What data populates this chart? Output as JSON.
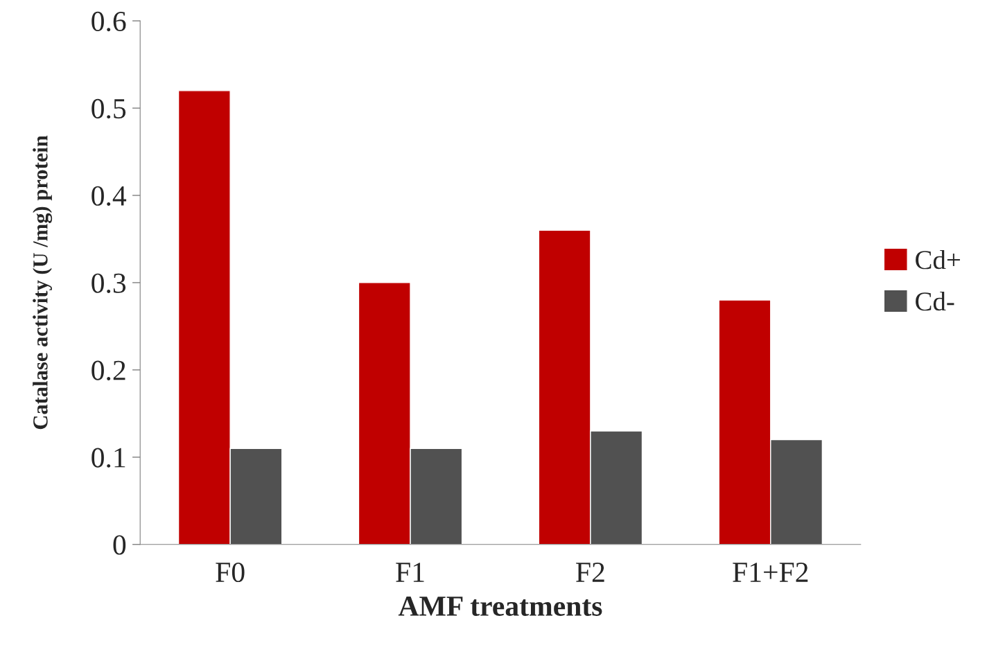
{
  "chart_data": {
    "type": "bar",
    "xlabel": "AMF treatments",
    "ylabel": "Catalase activity (U /mg) protein",
    "categories": [
      "F0",
      "F1",
      "F2",
      "F1+F2"
    ],
    "series": [
      {
        "name": "Cd+",
        "color": "#c00000",
        "values": [
          0.52,
          0.3,
          0.36,
          0.28
        ]
      },
      {
        "name": "Cd-",
        "color": "#515151",
        "values": [
          0.11,
          0.11,
          0.13,
          0.12
        ]
      }
    ],
    "ylim": [
      0,
      0.6
    ],
    "yticks": [
      {
        "value": 0,
        "label": "0"
      },
      0.1,
      0.2,
      0.3,
      0.4,
      0.5,
      0.6
    ],
    "grid": false,
    "legend": "right"
  }
}
